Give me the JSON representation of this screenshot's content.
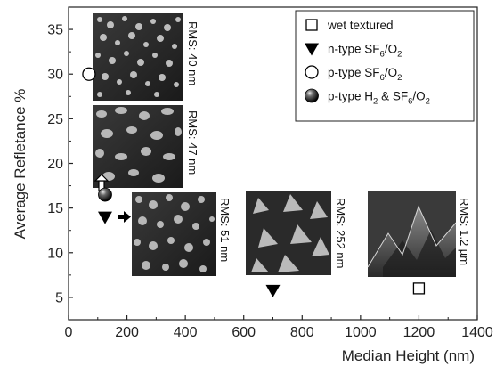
{
  "chart_data": {
    "type": "scatter",
    "xlabel": "Median Height (nm)",
    "ylabel": "Average Refletance %",
    "xlim": [
      0,
      1400
    ],
    "ylim": [
      2.5,
      37.5
    ],
    "xticks": [
      0,
      200,
      400,
      600,
      800,
      1000,
      1200,
      1400
    ],
    "yticks": [
      5,
      10,
      15,
      20,
      25,
      30,
      35
    ],
    "grid": false,
    "legend_position": "top-right",
    "series": [
      {
        "name": "wet textured",
        "marker": "open-square",
        "points": [
          {
            "x": 1200,
            "y": 6.0
          }
        ]
      },
      {
        "name": "n-type SF6/O2",
        "marker": "filled-down-triangle",
        "points": [
          {
            "x": 125,
            "y": 14.0
          },
          {
            "x": 700,
            "y": 5.8
          }
        ]
      },
      {
        "name": "p-type SF6/O2",
        "marker": "open-circle",
        "points": [
          {
            "x": 70,
            "y": 30.0
          }
        ]
      },
      {
        "name": "p-type H2 & SF6/O2",
        "marker": "shaded-sphere",
        "points": [
          {
            "x": 125,
            "y": 16.5
          }
        ]
      }
    ],
    "legend": [
      {
        "base": "wet textured"
      },
      {
        "base": "n-type SF",
        "sub1": "6",
        "mid": "/O",
        "sub2": "2"
      },
      {
        "base": "p-type SF",
        "sub1": "6",
        "mid": "/O",
        "sub2": "2"
      },
      {
        "base": "p-type H",
        "sub1": "2",
        "mid": " & SF",
        "sub2": "6",
        "tail": "/O",
        "sub3": "2"
      }
    ],
    "annotations": [
      {
        "label": "RMS: 40 nm"
      },
      {
        "label": "RMS: 47 nm"
      },
      {
        "label": "RMS: 51 nm"
      },
      {
        "label": "RMS: 252 nm"
      },
      {
        "label": "RMS: 1.2 µm"
      }
    ],
    "colors": {
      "axis": "#222222",
      "marker": "#000000"
    }
  }
}
